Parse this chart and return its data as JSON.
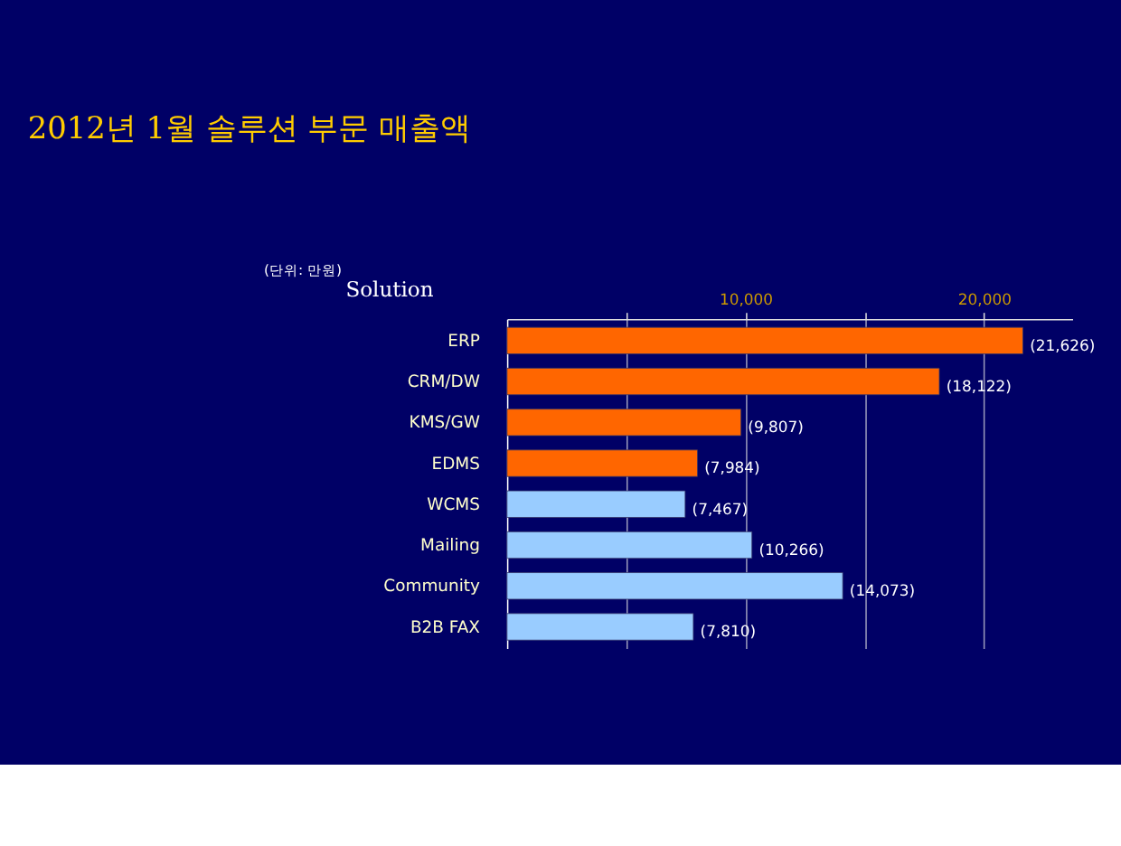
{
  "chart_data": {
    "type": "bar",
    "orientation": "horizontal",
    "title": "2012년 1월 솔루션 부문 매출액",
    "ylabel": "Solution",
    "annotations": [
      "(단위: 만원)"
    ],
    "categories": [
      "ERP",
      "CRM/DW",
      "KMS/GW",
      "EDMS",
      "WCMS",
      "Mailing",
      "Community",
      "B2B FAX"
    ],
    "values": [
      21626,
      18122,
      9807,
      7984,
      7467,
      10266,
      14073,
      7810
    ],
    "value_labels": [
      "(21,626)",
      "(18,122)",
      "(9,807)",
      "(7,984)",
      "(7,467)",
      "(10,266)",
      "(14,073)",
      "(7,810)"
    ],
    "colors": [
      "#ff6600",
      "#ff6600",
      "#ff6600",
      "#ff6600",
      "#99ccff",
      "#99ccff",
      "#99ccff",
      "#99ccff"
    ],
    "xlim": [
      0,
      23700
    ],
    "xticks": [
      {
        "value": 5000,
        "label": null
      },
      {
        "value": 10000,
        "label": "10,000"
      },
      {
        "value": 15000,
        "label": null
      },
      {
        "value": 20000,
        "label": "20,000"
      }
    ],
    "grid": "x"
  }
}
